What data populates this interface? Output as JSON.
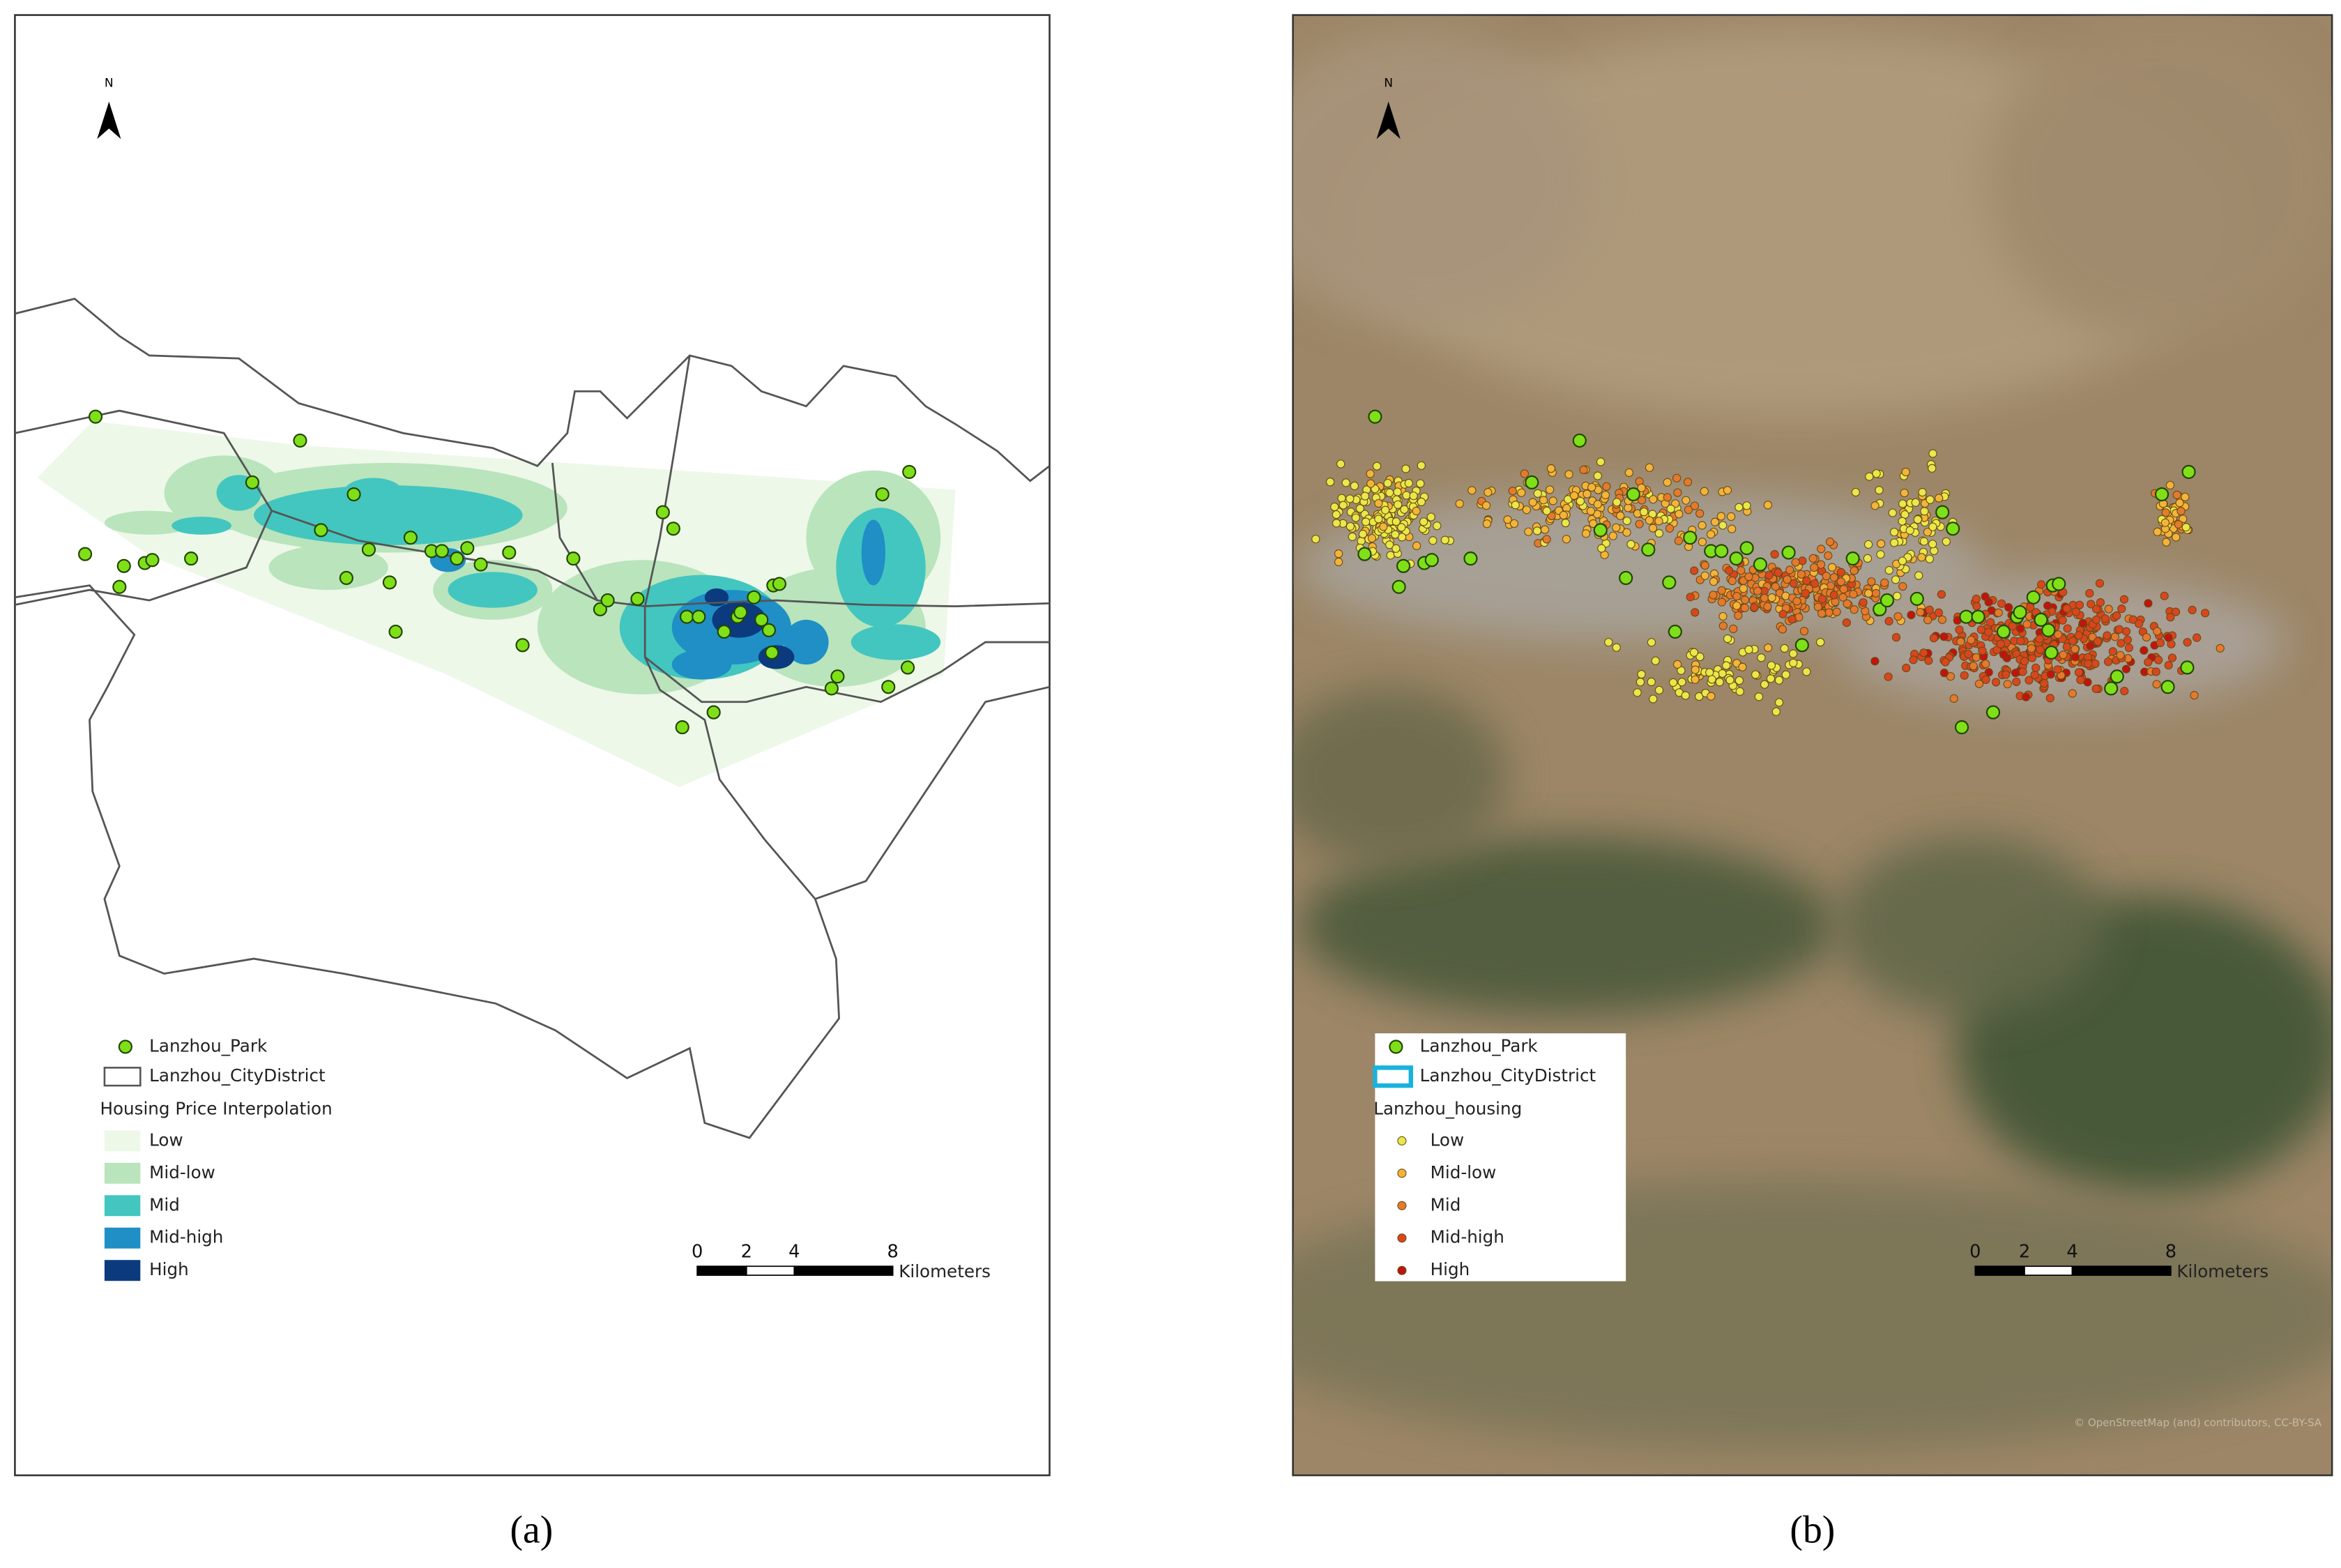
{
  "panels": [
    {
      "caption": "(a)",
      "north": "N",
      "legend": {
        "park": "Lanzhou_Park",
        "district": "Lanzhou_CityDistrict",
        "title": "Housing Price Interpolation",
        "classes": [
          {
            "label": "Low",
            "color": "#edf8e9"
          },
          {
            "label": "Mid-low",
            "color": "#bae4bc"
          },
          {
            "label": "Mid",
            "color": "#43c6bf"
          },
          {
            "label": "Mid-high",
            "color": "#1f8fc6"
          },
          {
            "label": "High",
            "color": "#0b3a7e"
          }
        ]
      },
      "scale": {
        "ticks": [
          "0",
          "2",
          "4",
          "8"
        ],
        "unit": "Kilometers"
      }
    },
    {
      "caption": "(b)",
      "north": "N",
      "legend": {
        "park": "Lanzhou_Park",
        "district": "Lanzhou_CityDistrict",
        "title": "Lanzhou_housing",
        "classes": [
          {
            "label": "Low",
            "color": "#e8e84a"
          },
          {
            "label": "Mid-low",
            "color": "#f2b43a"
          },
          {
            "label": "Mid",
            "color": "#e47a2e"
          },
          {
            "label": "Mid-high",
            "color": "#d8461f"
          },
          {
            "label": "High",
            "color": "#c0140f"
          }
        ]
      },
      "scale": {
        "ticks": [
          "0",
          "2",
          "4",
          "8"
        ],
        "unit": "Kilometers"
      },
      "attribution": "© OpenStreetMap (and) contributors, CC-BY-SA"
    }
  ]
}
